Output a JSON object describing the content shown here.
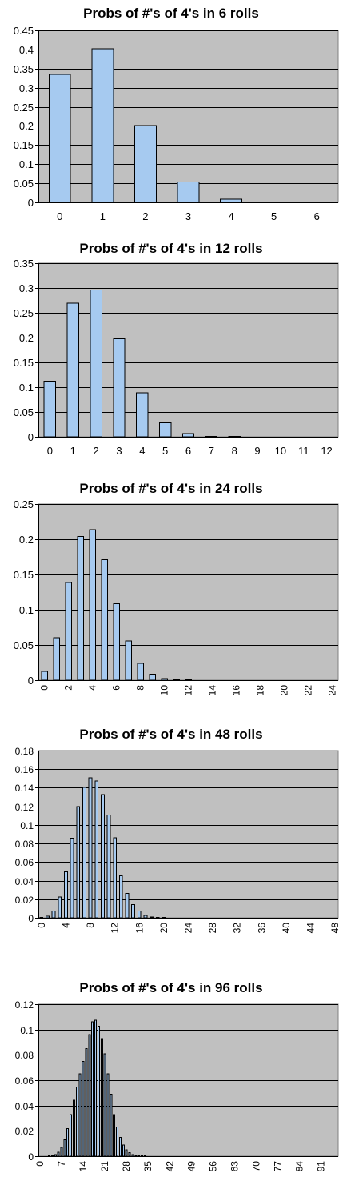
{
  "colors": {
    "bar_fill": "#a6caf0",
    "plot_bg": "#c0c0c0",
    "page_bg": "#ffffff"
  },
  "chart_data": [
    {
      "type": "bar",
      "title": "Probs of #'s of 4's in 6 rolls",
      "grid": true,
      "legend": "none",
      "ylim": [
        0,
        0.45
      ],
      "ytick_labels": [
        "0",
        "0.05",
        "0.1",
        "0.15",
        "0.2",
        "0.25",
        "0.3",
        "0.35",
        "0.4",
        "0.45"
      ],
      "categories": [
        "0",
        "1",
        "2",
        "3",
        "4",
        "5",
        "6"
      ],
      "xtick_labels": [
        "0",
        "1",
        "2",
        "3",
        "4",
        "5",
        "6"
      ],
      "xtick_rotated": false,
      "values": [
        0.3349,
        0.4019,
        0.2009,
        0.0536,
        0.008,
        0.0006,
        0.0
      ]
    },
    {
      "type": "bar",
      "title": "Probs of #'s of 4's in 12 rolls",
      "grid": true,
      "legend": "none",
      "ylim": [
        0,
        0.35
      ],
      "ytick_labels": [
        "0",
        "0.05",
        "0.1",
        "0.15",
        "0.2",
        "0.25",
        "0.3",
        "0.35"
      ],
      "categories": [
        "0",
        "1",
        "2",
        "3",
        "4",
        "5",
        "6",
        "7",
        "8",
        "9",
        "10",
        "11",
        "12"
      ],
      "xtick_labels": [
        "0",
        "1",
        "2",
        "3",
        "4",
        "5",
        "6",
        "7",
        "8",
        "9",
        "10",
        "11",
        "12"
      ],
      "xtick_rotated": false,
      "values": [
        0.1122,
        0.2692,
        0.2961,
        0.1974,
        0.0888,
        0.0284,
        0.0066,
        0.0011,
        0.0001,
        0,
        0,
        0,
        0
      ]
    },
    {
      "type": "bar",
      "title": "Probs of #'s of 4's in 24 rolls",
      "grid": true,
      "legend": "none",
      "ylim": [
        0,
        0.25
      ],
      "ytick_labels": [
        "0",
        "0.05",
        "0.1",
        "0.15",
        "0.2",
        "0.25"
      ],
      "categories": [
        "0",
        "1",
        "2",
        "3",
        "4",
        "5",
        "6",
        "7",
        "8",
        "9",
        "10",
        "11",
        "12",
        "13",
        "14",
        "15",
        "16",
        "17",
        "18",
        "19",
        "20",
        "21",
        "22",
        "23",
        "24"
      ],
      "xtick_labels": [
        "0",
        "2",
        "4",
        "6",
        "8",
        "10",
        "12",
        "14",
        "16",
        "18",
        "20",
        "22",
        "24"
      ],
      "xtick_rotated": true,
      "values": [
        0.0126,
        0.0604,
        0.1389,
        0.2037,
        0.2139,
        0.1711,
        0.1083,
        0.0557,
        0.0237,
        0.0084,
        0.0025,
        0.0006,
        0.0001,
        0,
        0,
        0,
        0,
        0,
        0,
        0,
        0,
        0,
        0,
        0,
        0
      ]
    },
    {
      "type": "bar",
      "title": "Probs of #'s of 4's in 48 rolls",
      "grid": true,
      "legend": "none",
      "ylim": [
        0,
        0.18
      ],
      "ytick_labels": [
        "0",
        "0.02",
        "0.04",
        "0.06",
        "0.08",
        "0.1",
        "0.12",
        "0.14",
        "0.16",
        "0.18"
      ],
      "categories": [
        "0",
        "1",
        "2",
        "3",
        "4",
        "5",
        "6",
        "7",
        "8",
        "9",
        "10",
        "11",
        "12",
        "13",
        "14",
        "15",
        "16",
        "17",
        "18",
        "19",
        "20",
        "21",
        "22",
        "23",
        "24",
        "25",
        "26",
        "27",
        "28",
        "29",
        "30",
        "31",
        "32",
        "33",
        "34",
        "35",
        "36",
        "37",
        "38",
        "39",
        "40",
        "41",
        "42",
        "43",
        "44",
        "45",
        "46",
        "47",
        "48"
      ],
      "xtick_labels": [
        "0",
        "4",
        "8",
        "12",
        "16",
        "20",
        "24",
        "28",
        "32",
        "36",
        "40",
        "44",
        "48"
      ],
      "xtick_rotated": true,
      "values": [
        0.0002,
        0.0016,
        0.0075,
        0.0226,
        0.0497,
        0.0855,
        0.1197,
        0.1402,
        0.1507,
        0.1473,
        0.1325,
        0.1108,
        0.0863,
        0.0454,
        0.0263,
        0.014,
        0.0074,
        0.0025,
        0.0009,
        0.0003,
        0.0001,
        0,
        0,
        0,
        0,
        0,
        0,
        0,
        0,
        0,
        0,
        0,
        0,
        0,
        0,
        0,
        0,
        0,
        0,
        0,
        0,
        0,
        0,
        0,
        0,
        0,
        0,
        0,
        0
      ]
    },
    {
      "type": "bar",
      "title": "Probs of #'s of 4's in 96 rolls",
      "grid": true,
      "legend": "none",
      "ylim": [
        0,
        0.12
      ],
      "ytick_labels": [
        "0",
        "0.02",
        "0.04",
        "0.06",
        "0.08",
        "0.1",
        "0.12"
      ],
      "categories": [
        "0",
        "1",
        "2",
        "3",
        "4",
        "5",
        "6",
        "7",
        "8",
        "9",
        "10",
        "11",
        "12",
        "13",
        "14",
        "15",
        "16",
        "17",
        "18",
        "19",
        "20",
        "21",
        "22",
        "23",
        "24",
        "25",
        "26",
        "27",
        "28",
        "29",
        "30",
        "31",
        "32",
        "33",
        "34",
        "35",
        "36",
        "37",
        "38",
        "39",
        "40",
        "41",
        "42",
        "43",
        "44",
        "45",
        "46",
        "47",
        "48",
        "49",
        "50",
        "51",
        "52",
        "53",
        "54",
        "55",
        "56",
        "57",
        "58",
        "59",
        "60",
        "61",
        "62",
        "63",
        "64",
        "65",
        "66",
        "67",
        "68",
        "69",
        "70",
        "71",
        "72",
        "73",
        "74",
        "75",
        "76",
        "77",
        "78",
        "79",
        "80",
        "81",
        "82",
        "83",
        "84",
        "85",
        "86",
        "87",
        "88",
        "89",
        "90",
        "91",
        "92",
        "93",
        "94",
        "95",
        "96"
      ],
      "xtick_labels": [
        "0",
        "7",
        "14",
        "21",
        "28",
        "35",
        "42",
        "49",
        "56",
        "63",
        "70",
        "77",
        "84",
        "91"
      ],
      "xtick_rotated": true,
      "values": [
        0,
        0,
        0,
        0.0001,
        0.0004,
        0.0012,
        0.0031,
        0.0068,
        0.013,
        0.0219,
        0.0328,
        0.0443,
        0.0545,
        0.0652,
        0.0749,
        0.0849,
        0.096,
        0.106,
        0.1075,
        0.1025,
        0.093,
        0.081,
        0.065,
        0.049,
        0.033,
        0.023,
        0.015,
        0.009,
        0.005,
        0.0027,
        0.0014,
        0.0007,
        0.0003,
        0.0001,
        5e-05,
        0,
        0,
        0,
        0,
        0,
        0,
        0,
        0,
        0,
        0,
        0,
        0,
        0,
        0,
        0,
        0,
        0,
        0,
        0,
        0,
        0,
        0,
        0,
        0,
        0,
        0,
        0,
        0,
        0,
        0,
        0,
        0,
        0,
        0,
        0,
        0,
        0,
        0,
        0,
        0,
        0,
        0,
        0,
        0,
        0,
        0,
        0,
        0,
        0,
        0,
        0,
        0,
        0,
        0,
        0,
        0,
        0,
        0,
        0,
        0,
        0,
        0
      ]
    }
  ]
}
